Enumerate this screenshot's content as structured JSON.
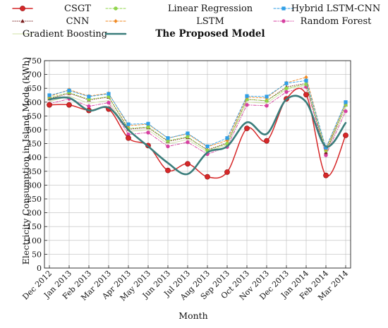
{
  "chart_data": {
    "type": "line",
    "xlabel": "Month",
    "ylabel": "Electricity Consumption in Island Mode (kWh)",
    "ylim": [
      0,
      750
    ],
    "yticks": [
      0,
      50,
      100,
      150,
      200,
      250,
      300,
      350,
      400,
      450,
      500,
      550,
      600,
      650,
      700,
      750
    ],
    "categories": [
      "Dec 2012",
      "Jan 2013",
      "Feb 2013",
      "Mar 2013",
      "Apr 2013",
      "May 2013",
      "Jun 2013",
      "Jul 2013",
      "Aug 2013",
      "Sep 2013",
      "Oct 2013",
      "Nov 2013",
      "Dec 2013",
      "Jan 2014",
      "Feb 2014",
      "Mar 2014"
    ],
    "grid": true,
    "legend_placement": "top",
    "series": [
      {
        "name": "CSGT",
        "color": "#d62728",
        "marker": "circle",
        "style": "solid-smooth",
        "values": [
          590,
          590,
          570,
          575,
          470,
          443,
          353,
          377,
          330,
          347,
          505,
          460,
          612,
          627,
          335,
          480
        ]
      },
      {
        "name": "Linear Regression",
        "color": "#8fd44a",
        "marker": "circle",
        "style": "dashed",
        "values": [
          615,
          635,
          610,
          620,
          505,
          510,
          460,
          475,
          425,
          450,
          610,
          605,
          650,
          665,
          425,
          590
        ]
      },
      {
        "name": "Hybrid LSTM-CNN",
        "color": "#2e9ee6",
        "marker": "square",
        "style": "dashed",
        "values": [
          625,
          642,
          620,
          630,
          520,
          522,
          470,
          487,
          440,
          470,
          622,
          620,
          668,
          678,
          435,
          600
        ]
      },
      {
        "name": "CNN",
        "color": "#7a1f1f",
        "marker": "triangle",
        "style": "dotted",
        "values": [
          612,
          632,
          608,
          618,
          502,
          508,
          458,
          472,
          428,
          452,
          610,
          605,
          655,
          668,
          418,
          590
        ]
      },
      {
        "name": "LSTM",
        "color": "#f08a24",
        "marker": "diamond",
        "style": "dashed",
        "values": [
          620,
          645,
          622,
          632,
          515,
          520,
          470,
          485,
          438,
          462,
          618,
          615,
          670,
          690,
          430,
          598
        ]
      },
      {
        "name": "Random Forest",
        "color": "#d63fa0",
        "marker": "circle",
        "style": "dashdot",
        "values": [
          594,
          612,
          585,
          598,
          483,
          490,
          440,
          455,
          412,
          438,
          590,
          587,
          637,
          655,
          408,
          567
        ]
      },
      {
        "name": "Gradient Boosting",
        "color": "#cfe0a6",
        "marker": "none",
        "style": "solid-thin",
        "values": [
          602,
          622,
          596,
          606,
          494,
          500,
          449,
          465,
          420,
          446,
          600,
          596,
          646,
          661,
          413,
          580
        ]
      },
      {
        "name": "The Proposed Model",
        "color": "#3a7d7b",
        "marker": "none",
        "style": "solid-thick",
        "values": [
          610,
          615,
          570,
          580,
          500,
          440,
          380,
          340,
          418,
          440,
          527,
          485,
          610,
          600,
          440,
          525
        ]
      }
    ]
  }
}
